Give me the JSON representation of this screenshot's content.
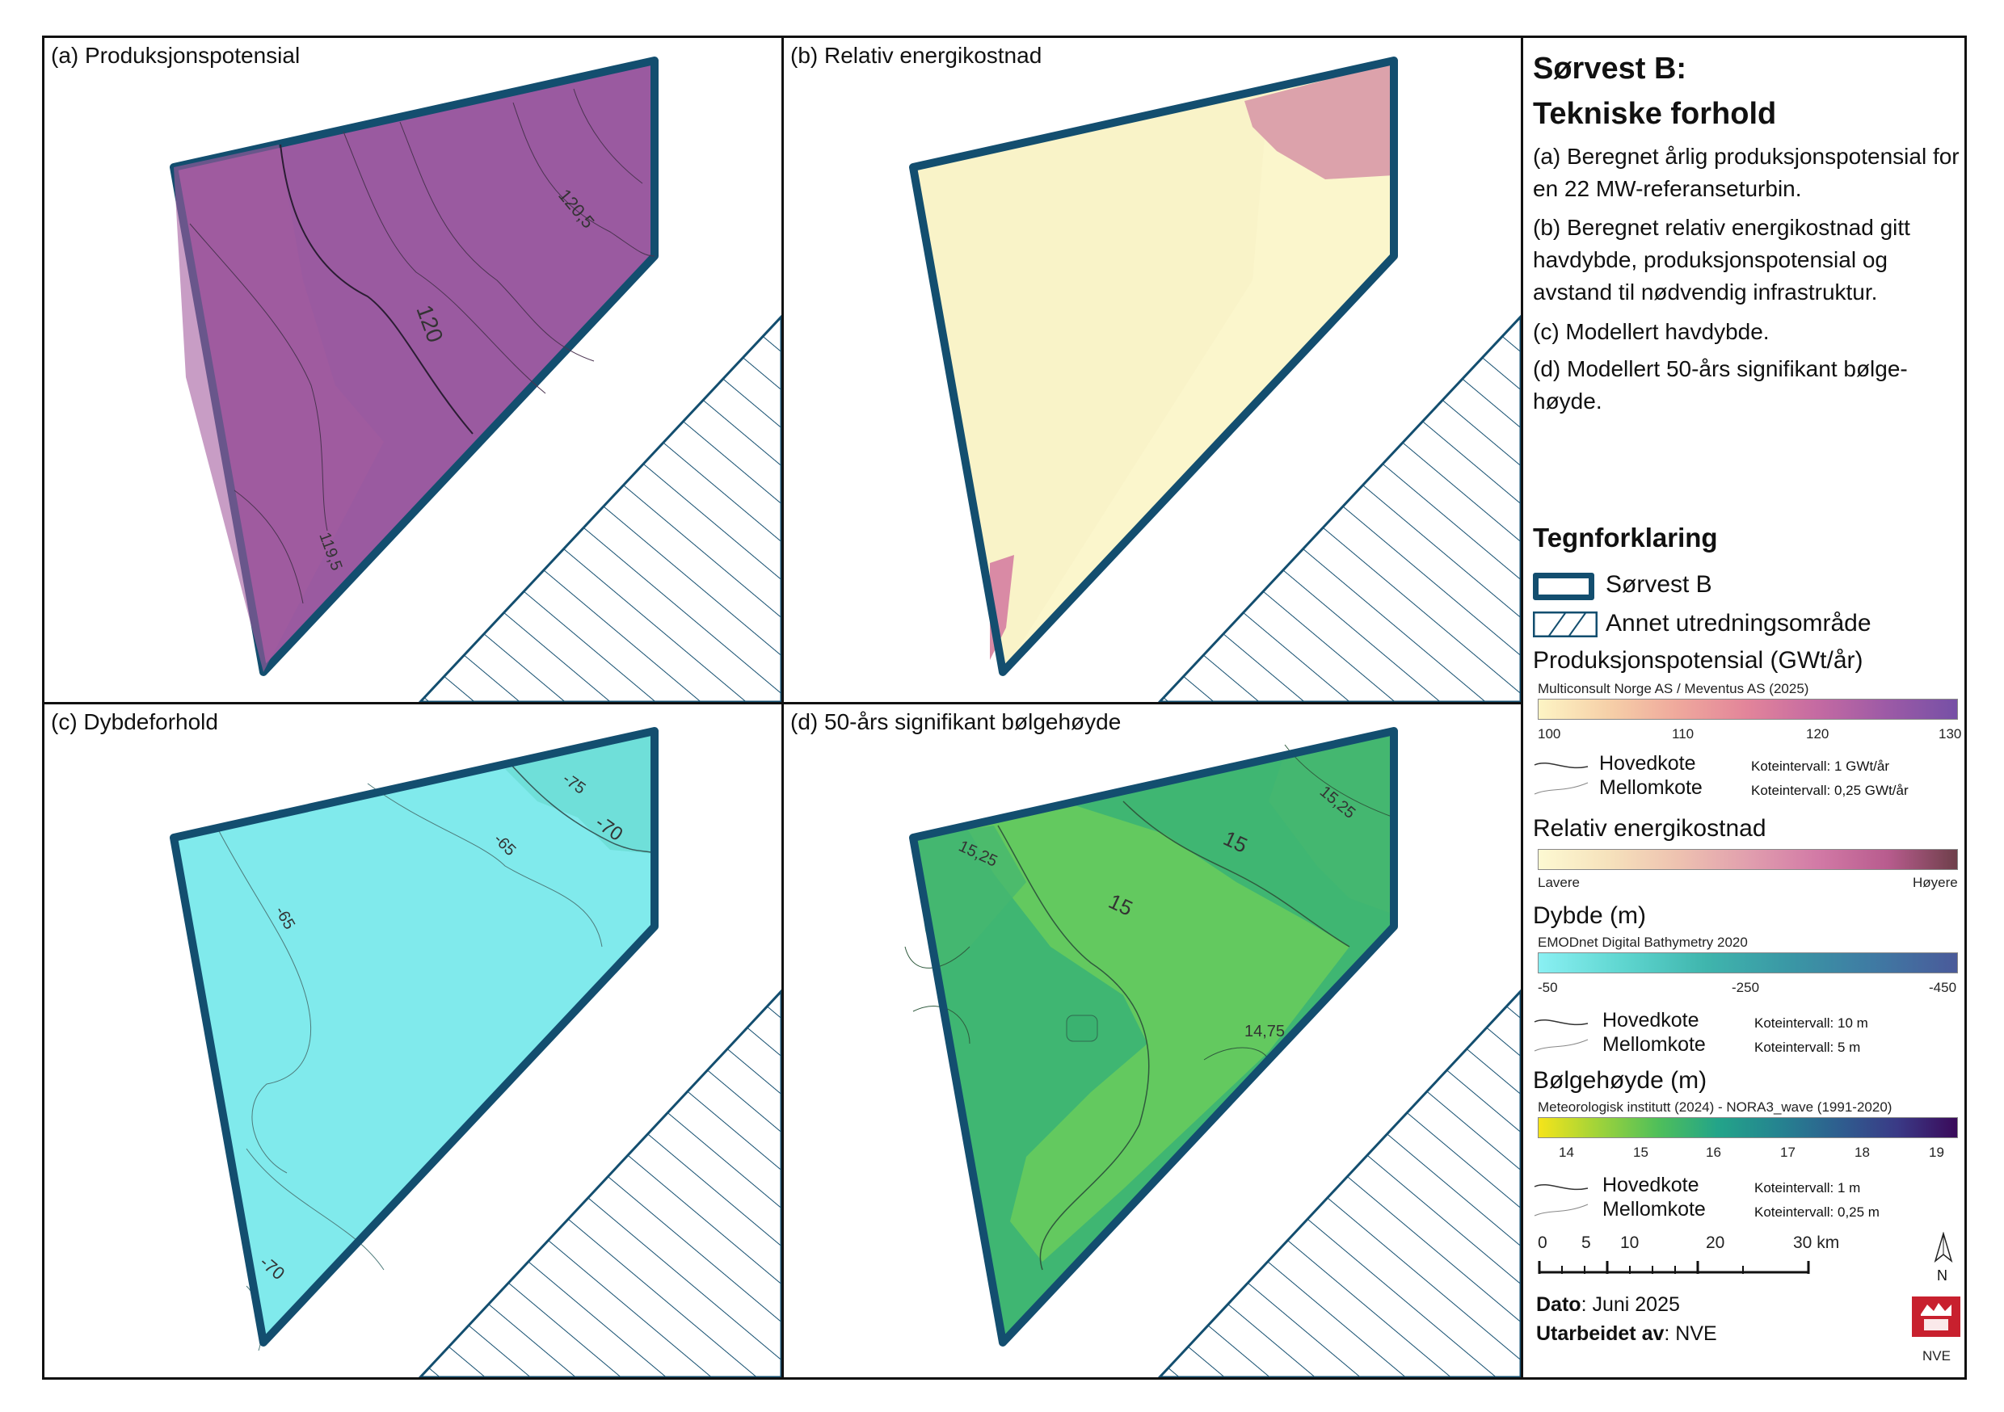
{
  "panels": {
    "a": {
      "title": "(a) Produksjonspotensial",
      "contours": [
        "120,5",
        "120",
        "119,5"
      ]
    },
    "b": {
      "title": "(b) Relativ energikostnad"
    },
    "c": {
      "title": "(c) Dybdeforhold",
      "contours": [
        "-75",
        "-70",
        "-65",
        "-65",
        "-70"
      ]
    },
    "d": {
      "title": "(d) 50-års signifikant bølgehøyde",
      "contours": [
        "15,25",
        "15,25",
        "15",
        "15",
        "14,75"
      ]
    }
  },
  "legend": {
    "title_line1": "Sørvest B:",
    "title_line2": "Tekniske forhold",
    "desc_a": "(a) Beregnet årlig produksjonspotensial for en 22 MW-referanseturbin.",
    "desc_b": "(b) Beregnet relativ energikostnad gitt havdybde, produksjonspotensial og avstand til nødvendig infrastruktur.",
    "desc_c": "(c) Modellert havdybde.",
    "desc_d": "(d) Modellert 50-års signifikant bølge-høyde.",
    "heading": "Tegnforklaring",
    "area_label": "Sørvest B",
    "other_label": "Annet utredningsområde",
    "prod": {
      "title": "Produksjonspotensial (GWt/år)",
      "source": "Multiconsult Norge AS / Meventus AS (2025)",
      "ticks": [
        "100",
        "110",
        "120",
        "130"
      ],
      "major": "Hovedkote",
      "minor": "Mellomkote",
      "major_int": "Koteintervall: 1 GWt/år",
      "minor_int": "Koteintervall: 0,25 GWt/år"
    },
    "cost": {
      "title": "Relativ energikostnad",
      "low": "Lavere",
      "high": "Høyere"
    },
    "depth": {
      "title": "Dybde (m)",
      "source": "EMODnet Digital Bathymetry 2020",
      "ticks": [
        "-50",
        "-250",
        "-450"
      ],
      "major": "Hovedkote",
      "minor": "Mellomkote",
      "major_int": "Koteintervall: 10 m",
      "minor_int": "Koteintervall: 5 m"
    },
    "wave": {
      "title": "Bølgehøyde (m)",
      "source": "Meteorologisk institutt (2024) - NORA3_wave (1991-2020)",
      "ticks": [
        "14",
        "15",
        "16",
        "17",
        "18",
        "19"
      ],
      "major": "Hovedkote",
      "minor": "Mellomkote",
      "major_int": "Koteintervall: 1 m",
      "minor_int": "Koteintervall: 0,25 m"
    },
    "scale": {
      "ticks": [
        "0",
        "5",
        "10",
        "20",
        "30 km"
      ]
    },
    "north": "N",
    "date_label": "Dato",
    "date_value": ": Juni 2025",
    "author_label": "Utarbeidet av",
    "author_value": ": NVE",
    "logo_text": "NVE"
  },
  "colors": {
    "outline": "#134e6f",
    "prod_fill": "#9a5aa0",
    "cost_fill": "#fbf6cc",
    "cost_high": "#dca2ab",
    "depth_fill": "#80eaec",
    "wave_fill": "#5fc864",
    "wave_dark": "#3fb672"
  }
}
